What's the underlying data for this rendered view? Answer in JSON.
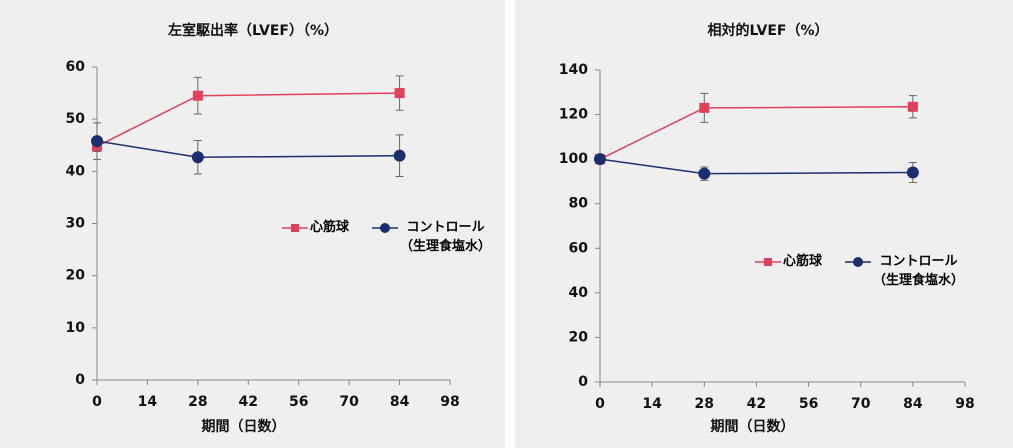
{
  "chart_data": [
    {
      "type": "line",
      "title": "左室駆出率（LVEF）（%）",
      "x_label": "期間（日数）",
      "x": [
        0,
        28,
        84
      ],
      "xlim": [
        0,
        98
      ],
      "xticks": [
        0,
        14,
        28,
        42,
        56,
        70,
        84,
        98
      ],
      "ylim": [
        0,
        60
      ],
      "yticks": [
        0,
        10,
        20,
        30,
        40,
        50,
        60
      ],
      "series": [
        {
          "name": "心筋球",
          "color": "#e0405a",
          "marker": "square",
          "values": [
            44.8,
            54.5,
            55.0
          ],
          "errors": [
            1.0,
            3.5,
            3.3
          ]
        },
        {
          "name": "コントロール\n（生理食塩水）",
          "color": "#1b2f6e",
          "marker": "circle",
          "values": [
            45.8,
            42.7,
            43.0
          ],
          "errors": [
            3.5,
            3.2,
            4.0
          ]
        }
      ]
    },
    {
      "type": "line",
      "title": "相対的LVEF（%）",
      "x_label": "期間（日数）",
      "x": [
        0,
        28,
        84
      ],
      "xlim": [
        0,
        98
      ],
      "xticks": [
        0,
        14,
        28,
        42,
        56,
        70,
        84,
        98
      ],
      "ylim": [
        0,
        140
      ],
      "yticks": [
        0,
        20,
        40,
        60,
        80,
        100,
        120,
        140
      ],
      "series": [
        {
          "name": "心筋球",
          "color": "#e0405a",
          "marker": "square",
          "values": [
            100,
            123,
            123.5
          ],
          "errors": [
            0.5,
            6.5,
            5.0
          ]
        },
        {
          "name": "コントロール\n（生理食塩水）",
          "color": "#1b2f6e",
          "marker": "circle",
          "values": [
            100,
            93.5,
            94
          ],
          "errors": [
            1.0,
            3.0,
            4.5
          ]
        }
      ]
    }
  ]
}
